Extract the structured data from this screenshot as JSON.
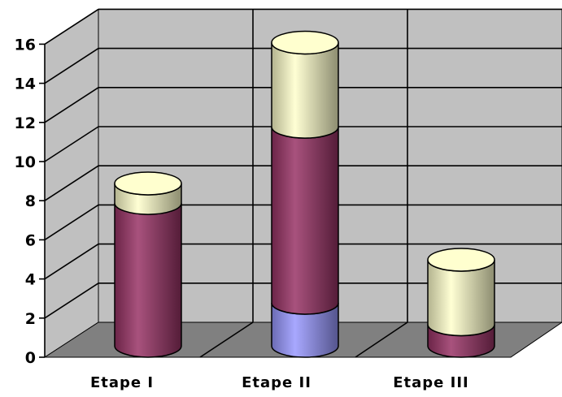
{
  "chart_data": {
    "type": "bar",
    "subtype": "stacked-3d-cylinder",
    "categories": [
      "Etape I",
      "Etape II",
      "Etape III"
    ],
    "series": [
      {
        "values": [
          0,
          2.2,
          0
        ],
        "color": "#9999ff"
      },
      {
        "values": [
          7.3,
          9,
          1.1
        ],
        "color": "#993366"
      },
      {
        "values": [
          1.0,
          4.3,
          3.3
        ],
        "color": "#ffffcc"
      }
    ],
    "yticks": [
      "0",
      "2",
      "4",
      "6",
      "8",
      "10",
      "12",
      "14",
      "16"
    ],
    "ylim": [
      0,
      16
    ],
    "grid": true,
    "legend": "none",
    "colors": {
      "wall": "#c0c0c0",
      "floor": "#808080",
      "gridline": "#000000"
    }
  }
}
